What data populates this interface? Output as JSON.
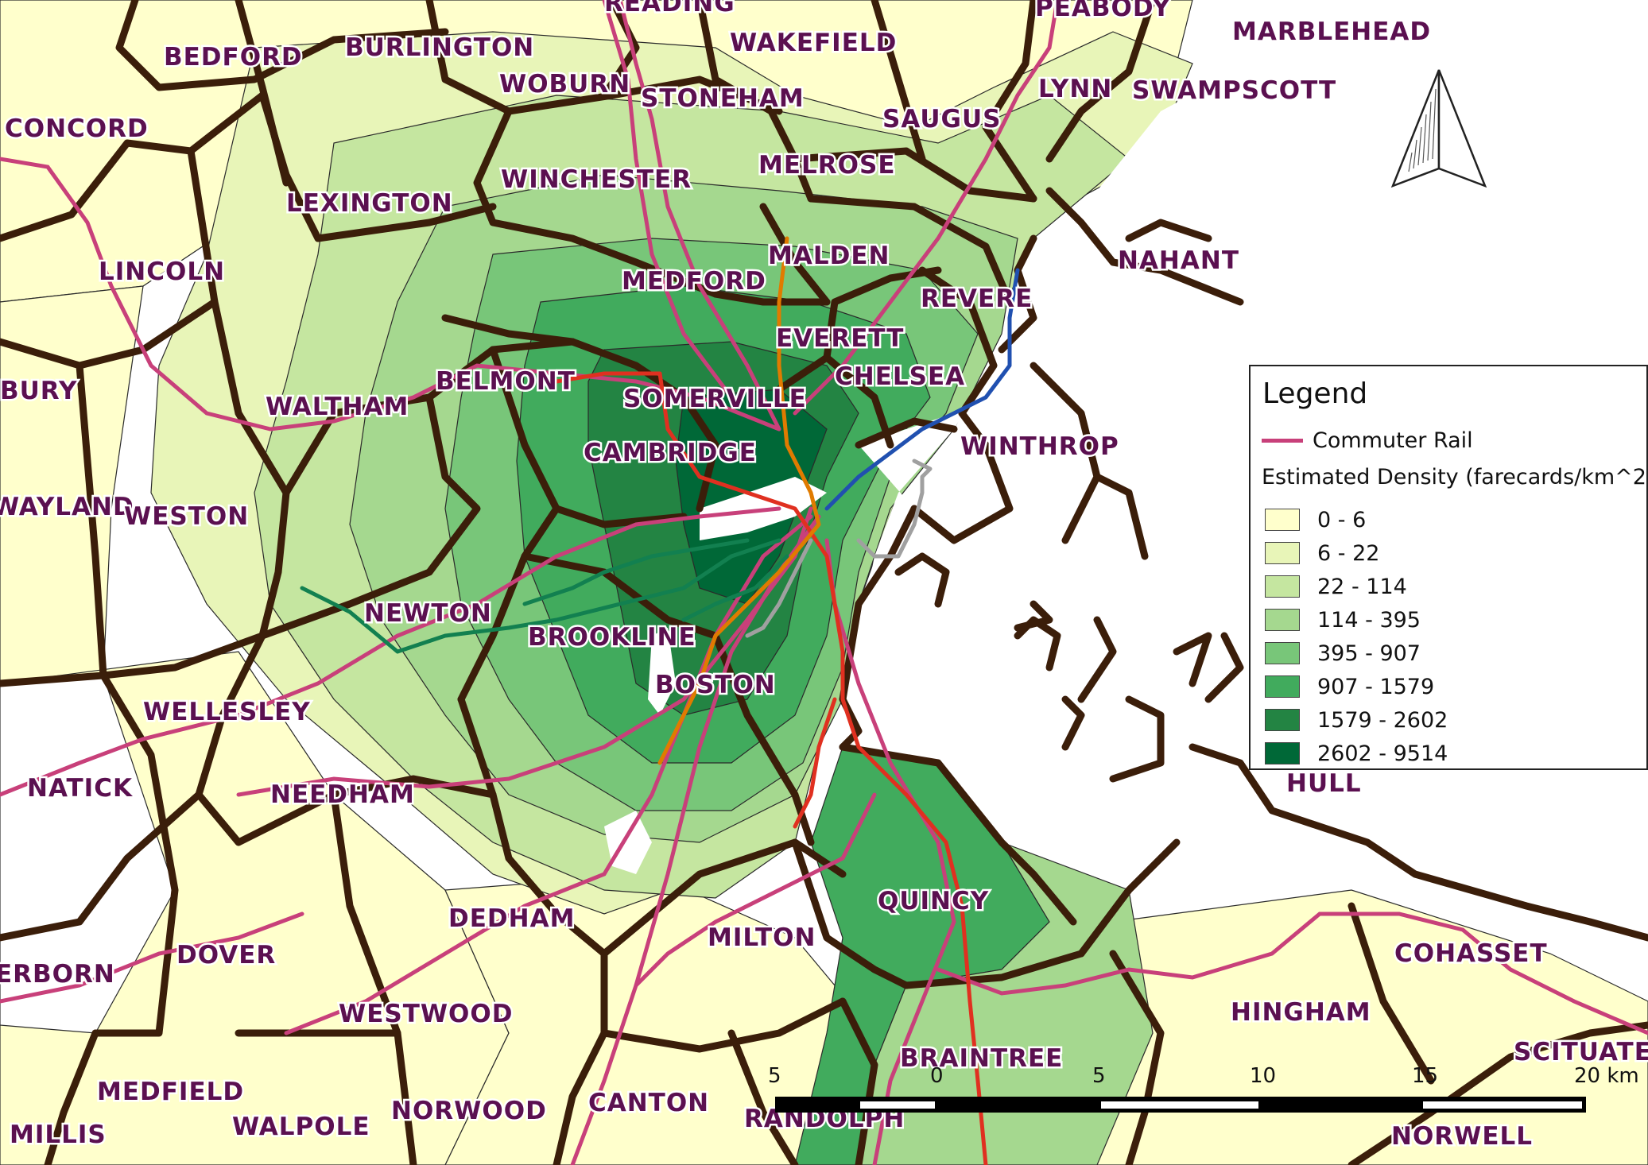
{
  "legend": {
    "title": "Legend",
    "rail_label": "Commuter Rail",
    "density_title": "Estimated Density (farecards/km^2)",
    "classes": [
      {
        "label": "0 - 6",
        "color": "#ffffcc"
      },
      {
        "label": "6 - 22",
        "color": "#e8f5b8"
      },
      {
        "label": "22 - 114",
        "color": "#c5e6a0"
      },
      {
        "label": "114 - 395",
        "color": "#a5d88f"
      },
      {
        "label": "395 - 907",
        "color": "#78c679"
      },
      {
        "label": "907 - 1579",
        "color": "#41ab5d"
      },
      {
        "label": "1579 - 2602",
        "color": "#238443"
      },
      {
        "label": "2602 - 9514",
        "color": "#006837"
      }
    ]
  },
  "scale_bar": {
    "ticks": [
      "5",
      "0",
      "5",
      "10",
      "15",
      "20 km"
    ]
  },
  "towns": [
    "READING",
    "PEABODY",
    "MARBLEHEAD",
    "BEDFORD",
    "BURLINGTON",
    "WAKEFIELD",
    "WOBURN",
    "STONEHAM",
    "LYNN",
    "SWAMPSCOTT",
    "CONCORD",
    "SAUGUS",
    "MELROSE",
    "WINCHESTER",
    "LEXINGTON",
    "NAHANT",
    "MALDEN",
    "LINCOLN",
    "MEDFORD",
    "REVERE",
    "EVERETT",
    "CHELSEA",
    "BELMONT",
    "BURY",
    "SOMERVILLE",
    "WALTHAM",
    "WINTHROP",
    "CAMBRIDGE",
    "WAYLAND",
    "WESTON",
    "NEWTON",
    "BROOKLINE",
    "BOSTON",
    "WELLESLEY",
    "HULL",
    "NATICK",
    "NEEDHAM",
    "QUINCY",
    "DEDHAM",
    "MILTON",
    "COHASSET",
    "DOVER",
    "ERBORN",
    "HINGHAM",
    "WESTWOOD",
    "SCITUATE",
    "BRAINTREE",
    "MEDFIELD",
    "NORWOOD",
    "CANTON",
    "MILLIS",
    "WALPOLE",
    "RANDOLPH",
    "NORWELL"
  ],
  "colors": {
    "boundary": "#3b1e0a",
    "commuter_rail": "#c8407a",
    "red_line": "#e03020",
    "orange_line": "#e07b00",
    "green_line": "#128050",
    "blue_line": "#2050b0",
    "silver_line": "#a0a0a0"
  }
}
